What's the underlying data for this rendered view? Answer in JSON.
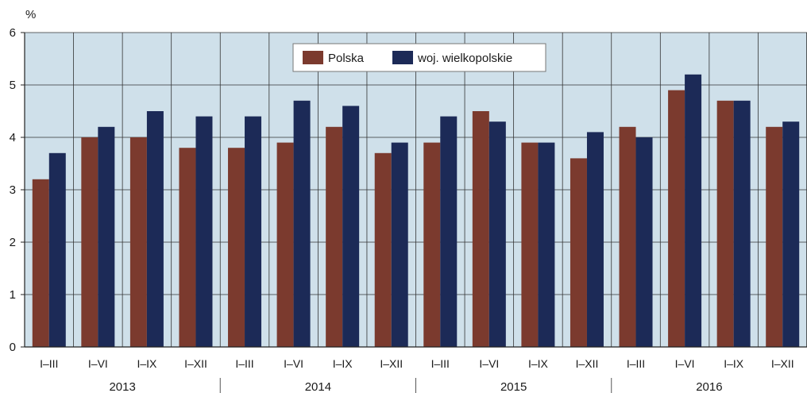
{
  "chart_data": {
    "type": "bar",
    "ylabel": "%",
    "ylim": [
      0,
      6
    ],
    "yticks": [
      "0",
      "1",
      "2",
      "3",
      "4",
      "5",
      "6"
    ],
    "grid": true,
    "legend_position": "top-center",
    "categories": [
      "I–III",
      "I–VI",
      "I–IX",
      "I–XII",
      "I–III",
      "I–VI",
      "I–IX",
      "I–XII",
      "I–III",
      "I–VI",
      "I–IX",
      "I–XII",
      "I–III",
      "I–VI",
      "I–IX",
      "I–XII"
    ],
    "years": [
      "2013",
      "2014",
      "2015",
      "2016"
    ],
    "series": [
      {
        "name": "Polska",
        "color": "#7b3a2e",
        "values": [
          3.2,
          4.0,
          4.0,
          3.8,
          3.8,
          3.9,
          4.2,
          3.7,
          3.9,
          4.5,
          3.9,
          3.6,
          4.2,
          4.9,
          4.7,
          4.2
        ]
      },
      {
        "name": "woj. wielkopolskie",
        "color": "#1c2a57",
        "values": [
          3.7,
          4.2,
          4.5,
          4.4,
          4.4,
          4.7,
          4.6,
          3.9,
          4.4,
          4.3,
          3.9,
          4.1,
          4.0,
          5.2,
          4.7,
          4.3
        ]
      }
    ],
    "plot_background": "#cfe0ea"
  }
}
